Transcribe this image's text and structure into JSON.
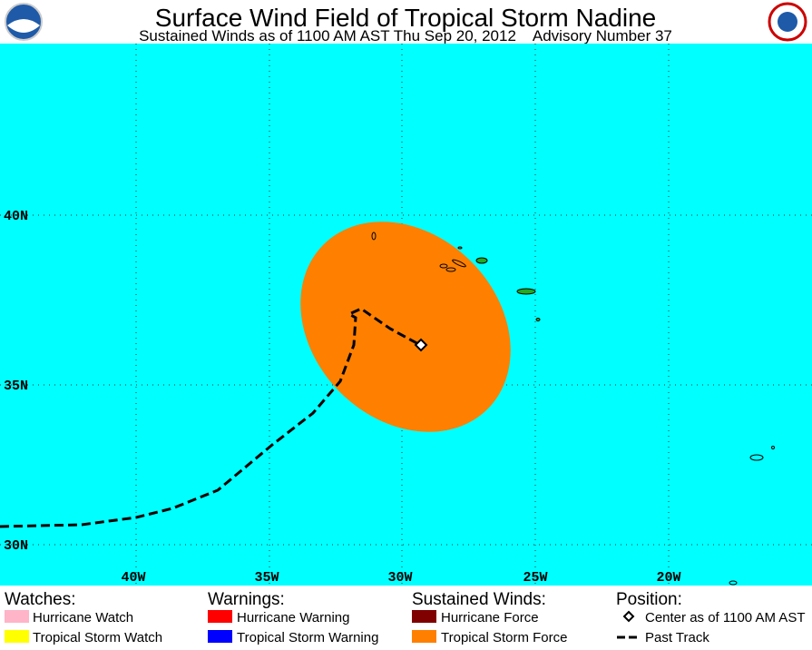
{
  "header": {
    "title": "Surface Wind Field of Tropical Storm Nadine",
    "subtitle": "Sustained Winds as of 1100 AM AST Thu Sep 20, 2012    Advisory Number 37"
  },
  "map": {
    "lat_labels": [
      "40N",
      "35N",
      "30N"
    ],
    "lon_labels": [
      "40W",
      "35W",
      "30W",
      "25W",
      "20W"
    ]
  },
  "legend": {
    "watches": {
      "heading": "Watches:",
      "items": [
        "Hurricane Watch",
        "Tropical Storm Watch"
      ]
    },
    "warnings": {
      "heading": "Warnings:",
      "items": [
        "Hurricane Warning",
        "Tropical Storm Warning"
      ]
    },
    "winds": {
      "heading": "Sustained Winds:",
      "items": [
        "Hurricane Force",
        "Tropical Storm Force"
      ]
    },
    "position": {
      "heading": "Position:",
      "items": [
        "Center as of 1100 AM AST",
        "Past Track"
      ]
    }
  }
}
